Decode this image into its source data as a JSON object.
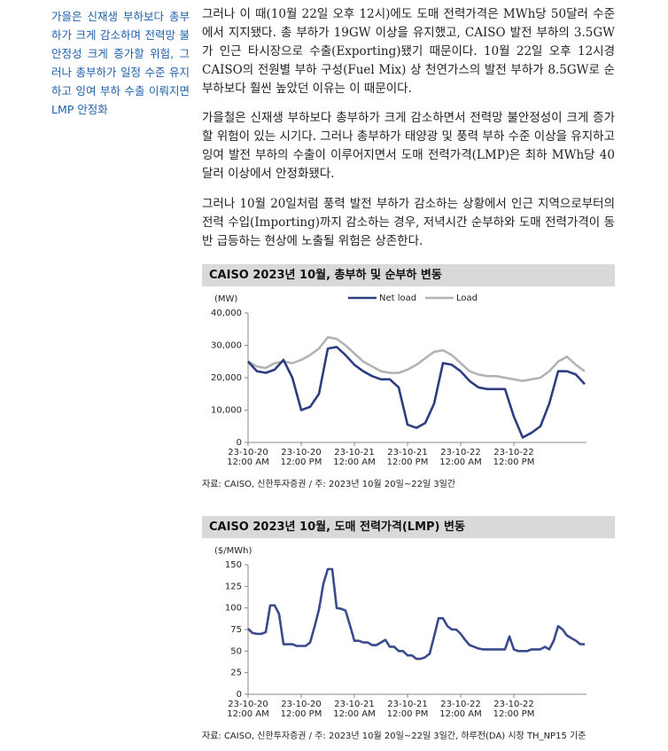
{
  "sidebar": "가을은 신재생 부하보다 총부하가 크게 감소하며 전력망 불안정성 크게 증가할 위험, 그러나 총부하가 일정 수준 유지하고 잉여 부하 수출 이뤄지면 LMP 안정화",
  "paragraphs": [
    "그러나 이 때(10월 22일 오후 12시)에도 도매 전력가격은 MWh당 50달러 수준에서 지지됐다. 총 부하가 19GW 이상을 유지했고, CAISO 발전 부하의 3.5GW가 인근 타시장으로 수출(Exporting)됐기 때문이다. 10월 22일 오후 12시경 CAISO의 전원별 부하 구성(Fuel Mix) 상 천연가스의 발전 부하가 8.5GW로 순부하보다 훨씬 높았던 이유는 이 때문이다.",
    "가을철은 신재생 부하보다 총부하가 크게 감소하면서 전력망 불안정성이 크게 증가할 위험이 있는 시기다. 그러나 총부하가 태양광 및 풍력 부하 수준 이상을 유지하고 잉여 발전 부하의 수출이 이루어지면서 도매 전력가격(LMP)은 최하 MWh당 40달러 이상에서 안정화됐다.",
    "그러나 10월 20일처럼 풍력 발전 부하가 감소하는 상황에서 인근 지역으로부터의 전력 수입(Importing)까지 감소하는 경우, 저녁시간 순부하와 도매 전력가격이 동반 급등하는 현상에 노출될 위험은 상존한다."
  ],
  "chart_data": [
    {
      "type": "line",
      "title": "CAISO 2023년 10월, 총부하 및 순부하 변동",
      "y_label": "(MW)",
      "source": "자료: CAISO, 신한투자증권 / 주: 2023년 10월 20일~22일 3일간",
      "legend": "top",
      "x": [
        0,
        2,
        4,
        6,
        8,
        10,
        12,
        14,
        16,
        18,
        20,
        22,
        24,
        26,
        28,
        30,
        32,
        34,
        36,
        38,
        40,
        42,
        44,
        46,
        48,
        50,
        52,
        54,
        56,
        58,
        60,
        62,
        64,
        66,
        68,
        70,
        72,
        74,
        76
      ],
      "series": [
        {
          "name": "Net load",
          "color": "#2e3d80",
          "values": [
            25000,
            22000,
            21500,
            22500,
            25500,
            20000,
            10000,
            11000,
            15000,
            29000,
            29500,
            27000,
            24000,
            22000,
            20500,
            19500,
            19500,
            17000,
            5500,
            4500,
            6000,
            12000,
            24500,
            24000,
            22000,
            19000,
            17000,
            16500,
            16500,
            16500,
            8000,
            1500,
            3000,
            5000,
            12000,
            22000,
            22000,
            21000,
            18000
          ]
        },
        {
          "name": "Load",
          "color": "#b3b3b3",
          "values": [
            25000,
            23500,
            23000,
            24500,
            25000,
            24500,
            25500,
            27000,
            29000,
            32500,
            32000,
            30000,
            27500,
            25000,
            23500,
            22000,
            21500,
            21500,
            22500,
            24000,
            26000,
            28000,
            28500,
            27000,
            24500,
            22000,
            21000,
            20500,
            20500,
            20000,
            19500,
            19000,
            19500,
            20000,
            22000,
            25000,
            26500,
            24000,
            22000
          ]
        }
      ],
      "xlim": [
        0,
        76
      ],
      "xticks": [
        {
          "value": 0,
          "label": "23-10-20 12:00 AM"
        },
        {
          "value": 12,
          "label": "23-10-20 12:00 PM"
        },
        {
          "value": 24,
          "label": "23-10-21 12:00 AM"
        },
        {
          "value": 36,
          "label": "23-10-21 12:00 PM"
        },
        {
          "value": 48,
          "label": "23-10-22 12:00 AM"
        },
        {
          "value": 60,
          "label": "23-10-22 12:00 PM"
        }
      ],
      "ylim": [
        0,
        40000
      ],
      "yticks": [
        0,
        {
          "value": 10000,
          "label": "10,000"
        },
        {
          "value": 20000,
          "label": "20,000"
        },
        {
          "value": 30000,
          "label": "30,000"
        },
        {
          "value": 40000,
          "label": "40,000"
        }
      ]
    },
    {
      "type": "line",
      "title": "CAISO 2023년 10월, 도매 전력가격(LMP) 변동",
      "y_label": "($/MWh)",
      "source": "자료: CAISO, 신한투자증권 / 주: 2023년 10월 20일~22일 3일간, 하루전(DA) 시장 TH_NP15 기준",
      "x": [
        0,
        1,
        2,
        3,
        4,
        5,
        6,
        7,
        8,
        9,
        10,
        11,
        12,
        13,
        14,
        15,
        16,
        17,
        18,
        19,
        20,
        21,
        22,
        23,
        24,
        25,
        26,
        27,
        28,
        29,
        30,
        31,
        32,
        33,
        34,
        35,
        36,
        37,
        38,
        39,
        40,
        41,
        42,
        43,
        44,
        45,
        46,
        47,
        48,
        49,
        50,
        51,
        52,
        53,
        54,
        55,
        56,
        57,
        58,
        59,
        60,
        61,
        62,
        63,
        64,
        65,
        66,
        67,
        68,
        69,
        70,
        71,
        72,
        73,
        74,
        75,
        76
      ],
      "series": [
        {
          "color": "#3a4a8c",
          "values": [
            76,
            71,
            70,
            70,
            72,
            103,
            103,
            93,
            58,
            58,
            58,
            56,
            56,
            56,
            60,
            78,
            98,
            128,
            145,
            145,
            100,
            99,
            97,
            80,
            62,
            62,
            60,
            60,
            57,
            57,
            60,
            63,
            55,
            55,
            50,
            50,
            45,
            45,
            41,
            41,
            43,
            47,
            67,
            88,
            88,
            79,
            75,
            75,
            70,
            63,
            57,
            55,
            53,
            52,
            52,
            52,
            52,
            52,
            52,
            67,
            52,
            50,
            50,
            50,
            52,
            52,
            52,
            55,
            52,
            62,
            79,
            75,
            68,
            65,
            62,
            58,
            58
          ]
        }
      ],
      "xlim": [
        0,
        76
      ],
      "xticks": [
        {
          "value": 0,
          "label": "23-10-20 12:00 AM"
        },
        {
          "value": 12,
          "label": "23-10-20 12:00 PM"
        },
        {
          "value": 24,
          "label": "23-10-21 12:00 AM"
        },
        {
          "value": 36,
          "label": "23-10-21 12:00 PM"
        },
        {
          "value": 48,
          "label": "23-10-22 12:00 AM"
        },
        {
          "value": 60,
          "label": "23-10-22 12:00 PM"
        }
      ],
      "ylim": [
        0,
        150
      ],
      "yticks": [
        0,
        25,
        50,
        75,
        100,
        125,
        150
      ]
    }
  ]
}
